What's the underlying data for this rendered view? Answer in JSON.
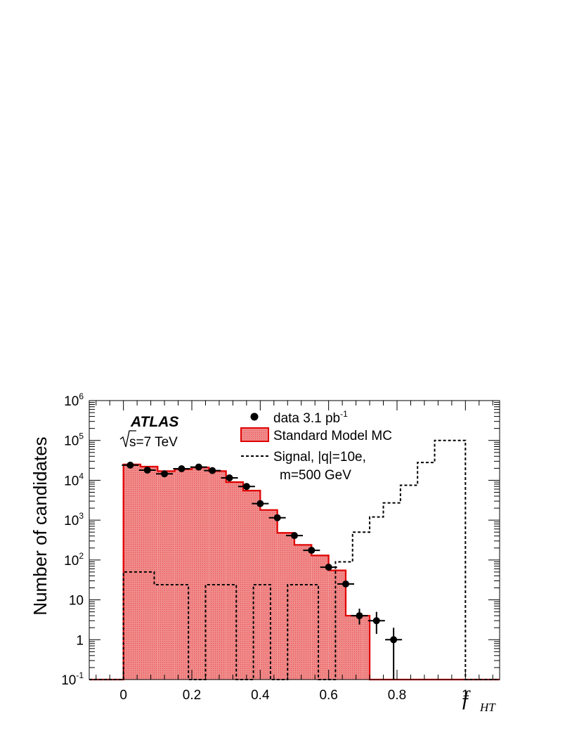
{
  "chart_data": {
    "type": "histogram",
    "xlabel": "f",
    "xlabel_sub": "HT",
    "ylabel": "Number of candidates",
    "xlim": [
      -0.1,
      1.1
    ],
    "ylim": [
      0.1,
      1000000
    ],
    "y_scale": "log",
    "x_ticks": [
      "0",
      "0.2",
      "0.4",
      "0.6",
      "0.8",
      "1"
    ],
    "y_ticks": [
      {
        "base": "10",
        "exp": "-1"
      },
      {
        "base": "1",
        "exp": ""
      },
      {
        "base": "10",
        "exp": ""
      },
      {
        "base": "10",
        "exp": "2"
      },
      {
        "base": "10",
        "exp": "3"
      },
      {
        "base": "10",
        "exp": "4"
      },
      {
        "base": "10",
        "exp": "5"
      },
      {
        "base": "10",
        "exp": "6"
      }
    ],
    "experiment": "ATLAS",
    "energy_label": "s=7 TeV",
    "legend": {
      "data": {
        "label": "data 3.1 pb",
        "sup": "-1"
      },
      "mc": {
        "label": "Standard Model MC"
      },
      "signal": {
        "label_line1": "Signal, |q|=10e,",
        "label_line2": "m=500 GeV"
      }
    },
    "colors": {
      "mc_fill": "#f08a8a",
      "mc_line": "#e00000",
      "data": "#000000",
      "signal": "#000000"
    },
    "series": [
      {
        "name": "Standard Model MC",
        "kind": "step-filled",
        "bin_edges": [
          0.0,
          0.05,
          0.1,
          0.15,
          0.2,
          0.25,
          0.3,
          0.35,
          0.4,
          0.45,
          0.5,
          0.55,
          0.6,
          0.65,
          0.7,
          0.72
        ],
        "values": [
          25000,
          22000,
          17000,
          19000,
          21000,
          17000,
          9000,
          5500,
          1800,
          480,
          240,
          130,
          55,
          4,
          4
        ]
      },
      {
        "name": "data 3.1 pb-1",
        "kind": "points",
        "x": [
          0.02,
          0.07,
          0.12,
          0.17,
          0.22,
          0.26,
          0.31,
          0.36,
          0.4,
          0.45,
          0.5,
          0.55,
          0.6,
          0.65,
          0.69,
          0.74,
          0.79
        ],
        "y": [
          24000,
          18000,
          14500,
          19500,
          21500,
          17500,
          11500,
          7000,
          2600,
          1150,
          410,
          175,
          66,
          25,
          4,
          3,
          1
        ],
        "yerr_low": [
          0,
          0,
          0,
          0,
          0,
          0,
          0,
          0,
          0,
          0,
          0,
          0,
          0,
          0,
          1.6,
          1.6,
          0.9
        ],
        "yerr_high": [
          0,
          0,
          0,
          0,
          0,
          0,
          0,
          0,
          0,
          0,
          0,
          0,
          0,
          0,
          2.0,
          2.0,
          1.0
        ]
      },
      {
        "name": "Signal, |q|=10e, m=500 GeV",
        "kind": "step-dashed",
        "bin_edges": [
          0.0,
          0.09,
          0.19,
          0.24,
          0.33,
          0.38,
          0.43,
          0.48,
          0.57,
          0.62,
          0.65,
          0.67,
          0.72,
          0.76,
          0.81,
          0.86,
          0.91,
          0.96,
          1.0
        ],
        "values": [
          50,
          24,
          0.1,
          24,
          0.1,
          24,
          0.1,
          24,
          0.1,
          90,
          90,
          500,
          1200,
          2700,
          7500,
          28000,
          100000,
          100000
        ]
      }
    ]
  }
}
